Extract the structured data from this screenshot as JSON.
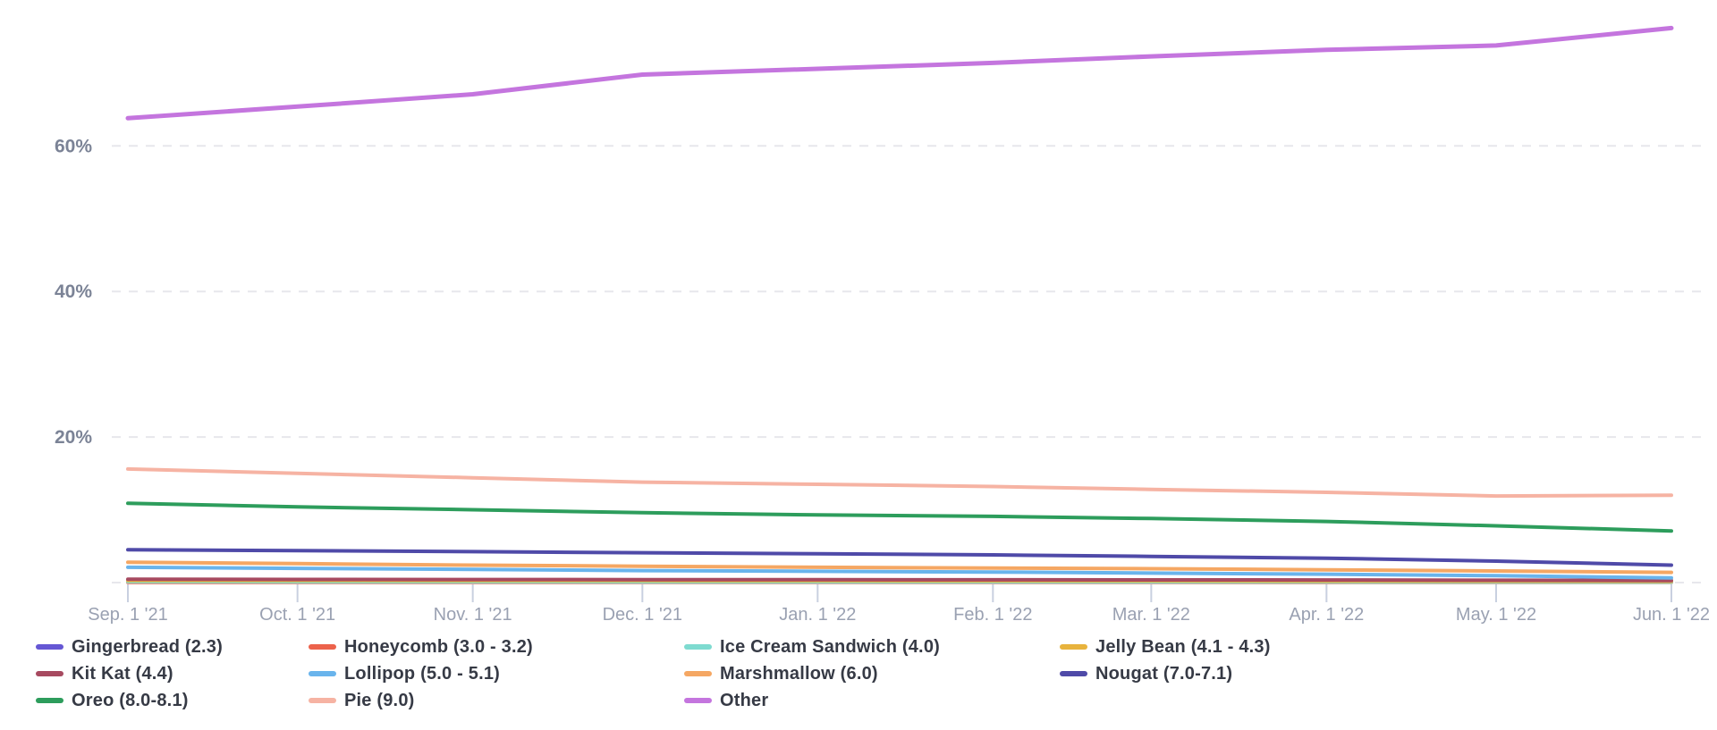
{
  "page": {
    "background_color": "#ffffff",
    "description": "Android version market share line chart, Sep 2021 - Jun 2022"
  },
  "chart_data": {
    "type": "line",
    "title": "",
    "xlabel": "",
    "ylabel": "",
    "ylim": [
      0,
      80
    ],
    "grid": "horizontal-dashed",
    "legend_position": "bottom",
    "axis_text_color": "#9aa1b2",
    "y_axis_text_color": "#7b8396",
    "gridline_color": "#e7e7ec",
    "tick_mark_color": "#c9d0e0",
    "x_tick_labels": [
      "Sep. 1 '21",
      "Oct. 1 '21",
      "Nov. 1 '21",
      "Dec. 1 '21",
      "Jan. 1 '22",
      "Feb. 1 '22",
      "Mar. 1 '22",
      "Apr. 1 '22",
      "May. 1 '22",
      "Jun. 1 '22"
    ],
    "x_days": [
      0,
      30,
      61,
      91,
      122,
      153,
      181,
      212,
      242,
      273
    ],
    "y_tick_labels": [
      "20%",
      "40%",
      "60%"
    ],
    "y_tick_values": [
      20,
      40,
      60
    ],
    "series": [
      {
        "name": "Gingerbread (2.3)",
        "color": "#6557d4",
        "values": [
          0.2,
          0.2,
          0.19,
          0.18,
          0.17,
          0.16,
          0.15,
          0.14,
          0.12,
          0.1
        ]
      },
      {
        "name": "Honeycomb (3.0 - 3.2)",
        "color": "#ec624b",
        "values": [
          0.04,
          0.04,
          0.04,
          0.03,
          0.03,
          0.03,
          0.03,
          0.03,
          0.02,
          0.02
        ]
      },
      {
        "name": "Ice Cream Sandwich (4.0)",
        "color": "#7edbd0",
        "values": [
          0.12,
          0.11,
          0.11,
          0.1,
          0.1,
          0.09,
          0.09,
          0.08,
          0.07,
          0.06
        ]
      },
      {
        "name": "Jelly Bean (4.1 - 4.3)",
        "color": "#e8b33d",
        "values": [
          0.3,
          0.29,
          0.28,
          0.27,
          0.26,
          0.25,
          0.24,
          0.22,
          0.2,
          0.17
        ]
      },
      {
        "name": "Kit Kat (4.4)",
        "color": "#a74a60",
        "values": [
          0.45,
          0.43,
          0.42,
          0.4,
          0.39,
          0.38,
          0.37,
          0.35,
          0.32,
          0.28
        ]
      },
      {
        "name": "Lollipop (5.0 - 5.1)",
        "color": "#69b4ec",
        "values": [
          2.1,
          1.95,
          1.8,
          1.65,
          1.55,
          1.45,
          1.3,
          1.15,
          0.95,
          0.65
        ]
      },
      {
        "name": "Marshmallow (6.0)",
        "color": "#f5a763",
        "values": [
          2.8,
          2.6,
          2.4,
          2.25,
          2.1,
          2.0,
          1.9,
          1.75,
          1.6,
          1.4
        ]
      },
      {
        "name": "Nougat (7.0-7.1)",
        "color": "#4f4aa8",
        "values": [
          4.5,
          4.4,
          4.25,
          4.1,
          3.95,
          3.8,
          3.6,
          3.35,
          2.95,
          2.4
        ]
      },
      {
        "name": "Oreo (8.0-8.1)",
        "color": "#2d9d5c",
        "values": [
          10.9,
          10.4,
          10.0,
          9.6,
          9.3,
          9.1,
          8.8,
          8.4,
          7.8,
          7.1
        ]
      },
      {
        "name": "Pie (9.0)",
        "color": "#f6b3a3",
        "values": [
          15.6,
          15.0,
          14.4,
          13.8,
          13.5,
          13.2,
          12.8,
          12.4,
          11.9,
          12.0
        ]
      },
      {
        "name": "Other",
        "color": "#c475de",
        "values": [
          63.8,
          65.4,
          67.1,
          69.8,
          70.6,
          71.4,
          72.3,
          73.2,
          73.8,
          76.2
        ]
      }
    ]
  }
}
